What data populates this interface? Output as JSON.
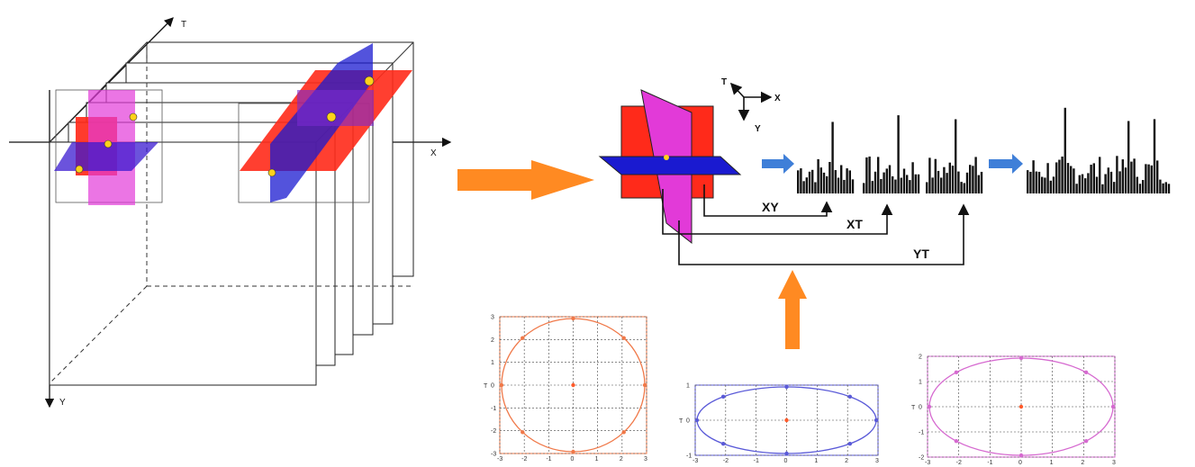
{
  "axes3d": {
    "t_label": "T",
    "x_label": "X",
    "y_label": "Y"
  },
  "mini_axes": {
    "t": "T",
    "x": "X",
    "y": "Y"
  },
  "planes": {
    "xy": "XY",
    "xt": "XT",
    "yt": "YT"
  },
  "colors": {
    "red": "#ff2a1a",
    "blue": "#1a1ad0",
    "magenta": "#e23ad8",
    "orange_arrow": "#ff8a22",
    "blue_arrow": "#3f7fd8",
    "ellipse1": "#f07848",
    "ellipse2": "#5a5ad8",
    "ellipse3": "#d66ad0"
  },
  "plots": [
    {
      "ylabel": "T",
      "xticks": [
        "-3",
        "-2",
        "-1",
        "0",
        "1",
        "2",
        "3"
      ],
      "yticks": [
        "3",
        "2",
        "1",
        "0",
        "-1",
        "-2",
        "-3"
      ]
    },
    {
      "ylabel": "T",
      "xticks": [
        "-3",
        "-2",
        "-1",
        "0",
        "1",
        "2",
        "3"
      ],
      "yticks": [
        "1",
        "0",
        "-1"
      ]
    },
    {
      "ylabel": "T",
      "xticks": [
        "-3",
        "-2",
        "-1",
        "0",
        "1",
        "2",
        "3"
      ],
      "yticks": [
        "2",
        "1",
        "0",
        "-1",
        "-2"
      ]
    }
  ]
}
